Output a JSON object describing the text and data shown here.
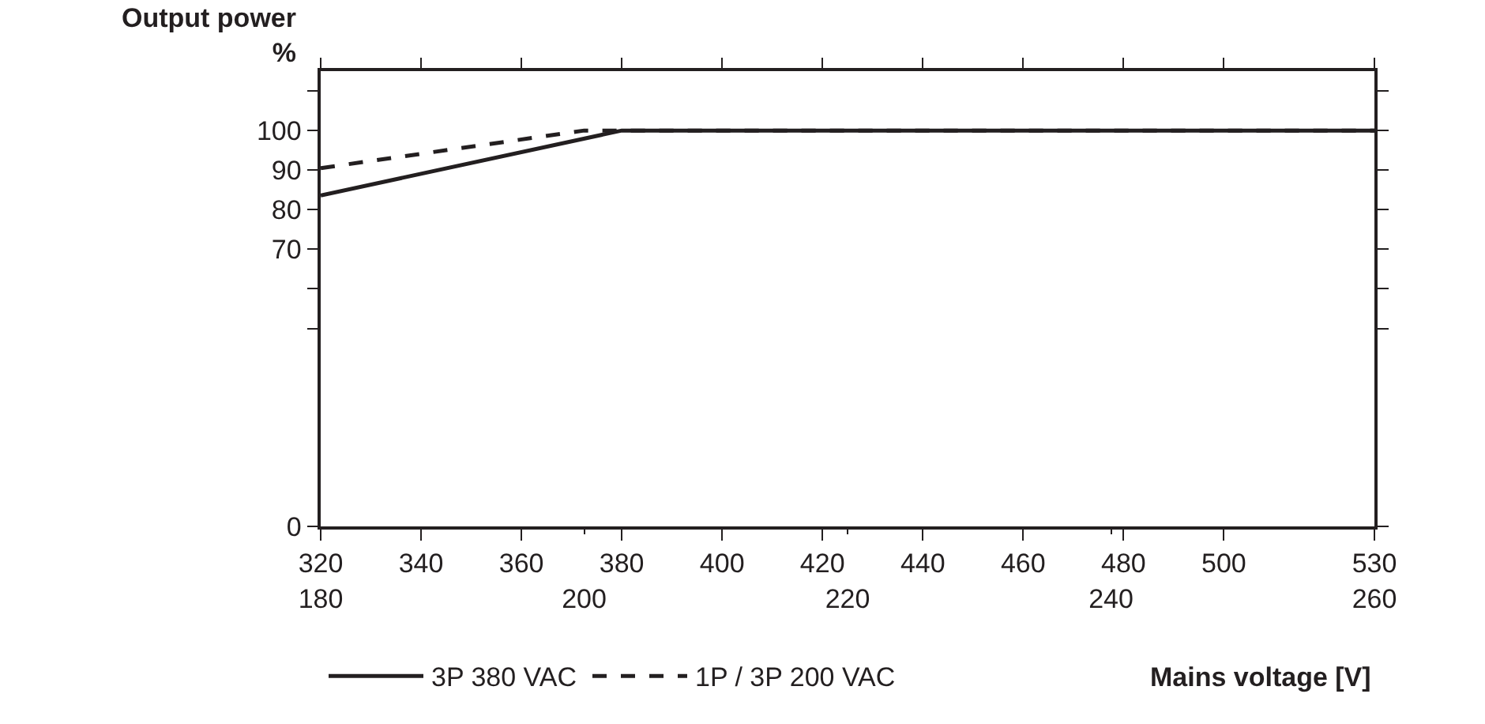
{
  "chart_data": {
    "type": "line",
    "xlabel": "Mains voltage [V]",
    "ylabel": "Output power\n%",
    "xlim": [
      320,
      530
    ],
    "xticks": [
      320,
      340,
      360,
      380,
      400,
      420,
      440,
      460,
      480,
      500,
      530
    ],
    "x2lim": [
      180,
      260
    ],
    "x2ticks": [
      180,
      200,
      220,
      240,
      260
    ],
    "ylim": [
      0,
      115
    ],
    "yticks": [
      0,
      {
        "value": 50,
        "label": null
      },
      {
        "value": 60,
        "label": null
      },
      70,
      80,
      90,
      100,
      {
        "value": 110,
        "label": null
      }
    ],
    "grid": false,
    "legend": "bottom",
    "marker": "none",
    "series": [
      {
        "name": "3P 380 VAC",
        "color": "#231f20",
        "x": [
          320,
          380,
          530
        ],
        "values": [
          83.6,
          100,
          100
        ],
        "line_style": "solid"
      },
      {
        "name": "1P / 3P 200 VAC",
        "color": "#231f20",
        "axis": "x2",
        "x": [
          180,
          200,
          260
        ],
        "values": [
          90.5,
          100,
          100
        ],
        "line_style": "dashed"
      }
    ]
  }
}
